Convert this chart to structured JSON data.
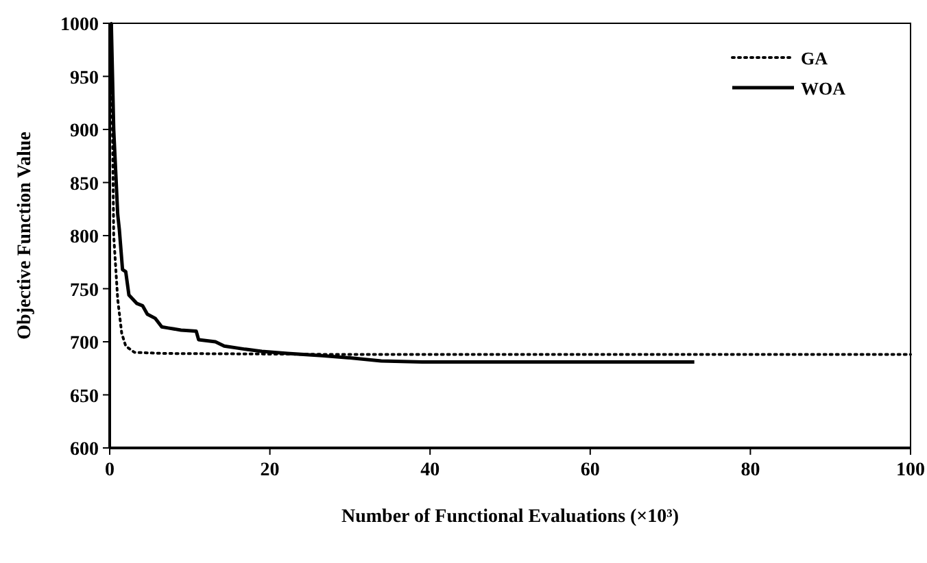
{
  "chart_data": {
    "type": "line",
    "xlabel": "Number of Functional Evaluations (×10³)",
    "ylabel": "Objective Function Value",
    "xlim": [
      0,
      100
    ],
    "xticks": [
      0,
      20,
      40,
      60,
      80,
      100
    ],
    "ylim": [
      600,
      1000
    ],
    "yticks": [
      600,
      650,
      700,
      750,
      800,
      850,
      900,
      950,
      1000
    ],
    "grid": false,
    "legend": "top right",
    "marker": "none",
    "series": [
      {
        "name": "GA",
        "color": "#000000",
        "line_style": "dotted",
        "x": [
          0.2,
          0.5,
          1,
          1.5,
          2,
          3.1,
          7,
          30,
          100
        ],
        "values": [
          1000,
          800,
          740,
          708,
          696,
          690,
          689,
          688,
          688
        ]
      },
      {
        "name": "WOA",
        "color": "#000000",
        "line_style": "solid",
        "x": [
          0.2,
          0.5,
          1,
          1.2,
          1.6,
          2,
          2.4,
          3.4,
          4.1,
          4.7,
          5.7,
          6.5,
          7.3,
          8.9,
          10.8,
          11.1,
          13.2,
          14.3,
          16.9,
          19,
          22.2,
          26.5,
          29.7,
          33.9,
          39,
          51,
          73
        ],
        "values": [
          1000,
          900,
          820,
          806,
          768,
          766,
          744,
          736,
          734,
          726,
          722,
          714,
          713,
          711,
          710,
          702,
          700,
          696,
          693,
          691,
          689,
          687,
          685,
          682,
          681,
          681,
          681
        ]
      }
    ]
  }
}
